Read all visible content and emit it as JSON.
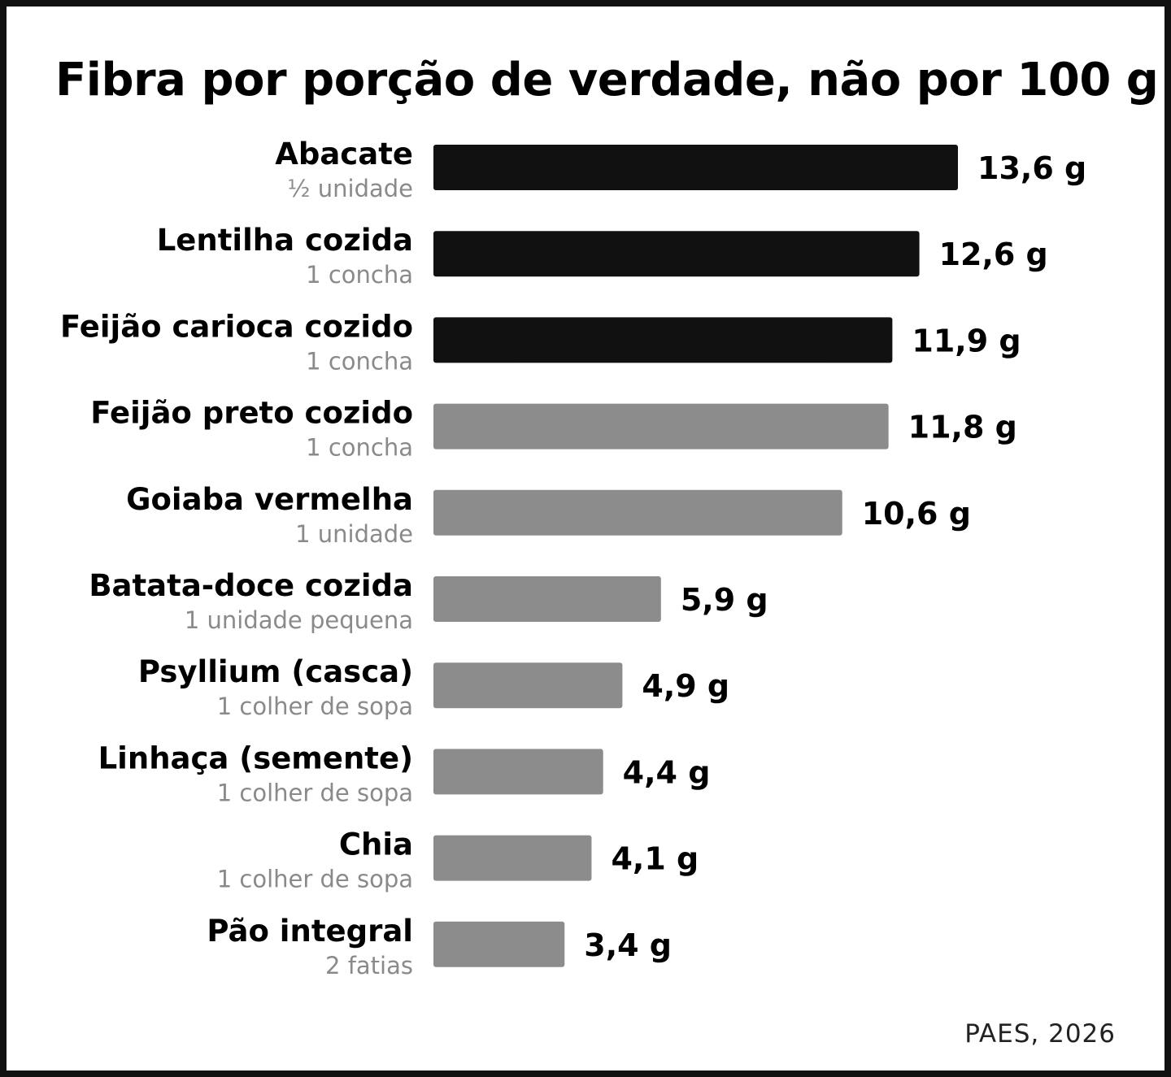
{
  "chart_data": {
    "type": "bar",
    "orientation": "horizontal",
    "title": "Fibra por porção de verdade, não por 100 g",
    "categories": [
      "Abacate",
      "Lentilha cozida",
      "Feijão carioca cozido",
      "Feijão preto cozido",
      "Goiaba vermelha",
      "Batata-doce cozida",
      "Psyllium (casca)",
      "Linhaça (semente)",
      "Chia",
      "Pão integral"
    ],
    "portions": [
      "½ unidade",
      "1 concha",
      "1 concha",
      "1 concha",
      "1 unidade",
      "1 unidade pequena",
      "1 colher de sopa",
      "1 colher de sopa",
      "1 colher de sopa",
      "2 fatias"
    ],
    "values": [
      13.6,
      12.6,
      11.9,
      11.8,
      10.6,
      5.9,
      4.9,
      4.4,
      4.1,
      3.4
    ],
    "value_labels": [
      "13,6 g",
      "12,6 g",
      "11,9 g",
      "11,8 g",
      "10,6 g",
      "5,9 g",
      "4,9 g",
      "4,4 g",
      "4,1 g",
      "3,4 g"
    ],
    "highlight_top_n": 3,
    "colors": {
      "highlight": "#111111",
      "default": "#8c8c8c"
    },
    "xlim": [
      0,
      13.6
    ],
    "grid": false,
    "legend": "none",
    "source": "PAES, 2026"
  }
}
